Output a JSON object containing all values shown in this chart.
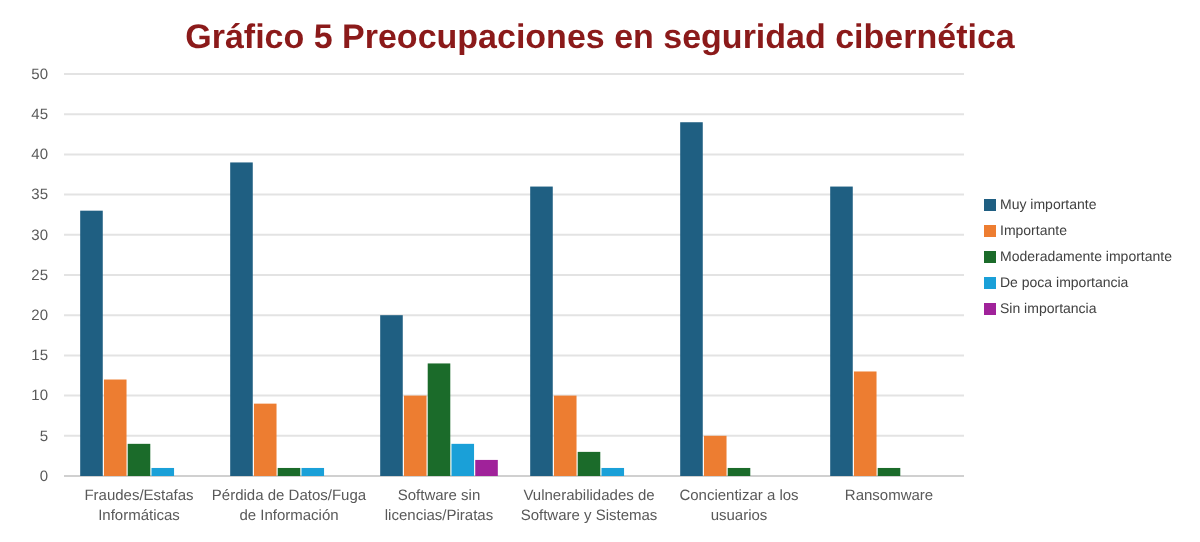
{
  "chart_data": {
    "type": "bar",
    "title": "Gráfico 5 Preocupaciones en seguridad cibernética",
    "categories": [
      "Fraudes/Estafas Informáticas",
      "Pérdida de Datos/Fuga de Información",
      "Software sin licencias/Piratas",
      "Vulnerabilidades de Software y Sistemas",
      "Concientizar a los usuarios",
      "Ransomware"
    ],
    "series": [
      {
        "name": "Muy importante",
        "color": "#1f5f82",
        "values": [
          33,
          39,
          20,
          36,
          44,
          36
        ]
      },
      {
        "name": "Importante",
        "color": "#ed7d31",
        "values": [
          12,
          9,
          10,
          10,
          5,
          13
        ]
      },
      {
        "name": "Moderadamente importante",
        "color": "#1b6b2a",
        "values": [
          4,
          1,
          14,
          3,
          1,
          1
        ]
      },
      {
        "name": "De poca importancia",
        "color": "#1aa0d8",
        "values": [
          1,
          1,
          4,
          1,
          0,
          0
        ]
      },
      {
        "name": "Sin importancia",
        "color": "#a0229a",
        "values": [
          0,
          0,
          2,
          0,
          0,
          0
        ]
      }
    ],
    "ylim": [
      0,
      50
    ],
    "yticks": [
      0,
      5,
      10,
      15,
      20,
      25,
      30,
      35,
      40,
      45,
      50
    ],
    "grid": "y",
    "legend": "right"
  }
}
